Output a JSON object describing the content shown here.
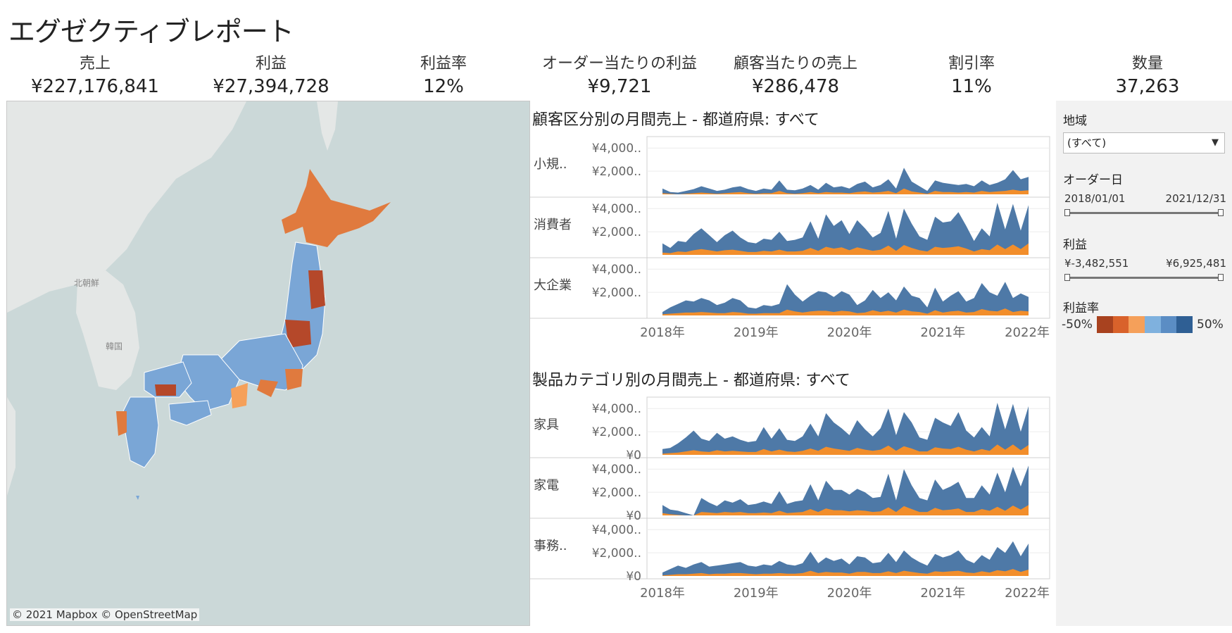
{
  "title": "エグゼクティブレポート",
  "kpis": [
    {
      "label": "売上",
      "value": "¥227,176,841"
    },
    {
      "label": "利益",
      "value": "¥27,394,728"
    },
    {
      "label": "利益率",
      "value": "12%"
    },
    {
      "label": "オーダー当たりの利益",
      "value": "¥9,721"
    },
    {
      "label": "顧客当たりの売上",
      "value": "¥286,478"
    },
    {
      "label": "割引率",
      "value": "11%"
    },
    {
      "label": "数量",
      "value": "37,263"
    }
  ],
  "map": {
    "credit": "© 2021 Mapbox © OpenStreetMap",
    "labels": {
      "north_korea": "北朝鮮",
      "south_korea": "韓国"
    }
  },
  "colors": {
    "sales_area": "#4e79a7",
    "profit_area": "#f28e2b",
    "map_high_loss": "#b5482a",
    "map_loss": "#e07a3e",
    "map_profit": "#7aa6d6",
    "legend": [
      "#a8421f",
      "#d9622b",
      "#f5a05a",
      "#7fb1de",
      "#5b8dc4",
      "#2f5f94"
    ]
  },
  "chart_customer": {
    "title": "顧客区分別の月間売上 - 都道府県: すべて",
    "rows": [
      {
        "label": "小規..",
        "ticks": [
          "¥4,000..",
          "¥2,000.."
        ]
      },
      {
        "label": "消費者",
        "ticks": [
          "¥4,000..",
          "¥2,000.."
        ]
      },
      {
        "label": "大企業",
        "ticks": [
          "¥4,000..",
          "¥2,000.."
        ]
      }
    ],
    "years": [
      "2018年",
      "2019年",
      "2020年",
      "2021年",
      "2022年"
    ]
  },
  "chart_product": {
    "title": "製品カテゴリ別の月間売上 - 都道府県: すべて",
    "rows": [
      {
        "label": "家具",
        "ticks": [
          "¥4,000..",
          "¥2,000..",
          "¥0"
        ]
      },
      {
        "label": "家電",
        "ticks": [
          "¥4,000..",
          "¥2,000..",
          "¥0"
        ]
      },
      {
        "label": "事務..",
        "ticks": [
          "¥4,000..",
          "¥2,000..",
          "¥0"
        ]
      }
    ],
    "years": [
      "2018年",
      "2019年",
      "2020年",
      "2021年",
      "2022年"
    ]
  },
  "chart_data": [
    {
      "type": "area",
      "title": "顧客区分別の月間売上 - 都道府県: すべて",
      "x_range": [
        "2018-01",
        "2021-12"
      ],
      "ylim": [
        0,
        4500000
      ],
      "series": [
        {
          "name": "小規..",
          "sales": [
            500000,
            200000,
            150000,
            300000,
            450000,
            700000,
            500000,
            300000,
            400000,
            600000,
            700000,
            450000,
            300000,
            500000,
            400000,
            1200000,
            400000,
            350000,
            500000,
            800000,
            400000,
            1000000,
            600000,
            700000,
            500000,
            900000,
            1100000,
            600000,
            800000,
            1300000,
            500000,
            2300000,
            1100000,
            700000,
            300000,
            1200000,
            1000000,
            900000,
            800000,
            900000,
            700000,
            1200000,
            800000,
            1000000,
            1300000,
            2100000,
            1300000,
            1500000
          ],
          "profit": [
            100000,
            50000,
            0,
            50000,
            100000,
            150000,
            100000,
            50000,
            100000,
            150000,
            200000,
            100000,
            50000,
            100000,
            100000,
            300000,
            100000,
            50000,
            100000,
            200000,
            100000,
            200000,
            150000,
            150000,
            100000,
            200000,
            250000,
            150000,
            200000,
            300000,
            100000,
            500000,
            250000,
            150000,
            50000,
            300000,
            200000,
            200000,
            150000,
            200000,
            150000,
            300000,
            200000,
            250000,
            300000,
            400000,
            300000,
            350000
          ]
        },
        {
          "name": "消費者",
          "sales": [
            1000000,
            600000,
            1200000,
            1100000,
            1800000,
            2300000,
            1700000,
            1100000,
            1700000,
            2100000,
            1500000,
            1100000,
            1000000,
            1400000,
            1300000,
            2000000,
            1200000,
            1300000,
            1500000,
            2900000,
            1400000,
            3500000,
            2500000,
            3000000,
            1800000,
            3000000,
            2300000,
            1500000,
            1900000,
            3800000,
            1400000,
            4000000,
            2700000,
            1600000,
            1300000,
            3300000,
            2800000,
            2900000,
            3700000,
            2500000,
            1200000,
            2300000,
            1600000,
            4500000,
            2200000,
            4400000,
            2100000,
            4300000
          ],
          "profit": [
            200000,
            150000,
            300000,
            250000,
            400000,
            500000,
            400000,
            300000,
            400000,
            450000,
            350000,
            250000,
            250000,
            350000,
            300000,
            450000,
            300000,
            300000,
            350000,
            600000,
            350000,
            700000,
            550000,
            650000,
            400000,
            650000,
            500000,
            350000,
            450000,
            800000,
            350000,
            850000,
            600000,
            400000,
            300000,
            700000,
            600000,
            650000,
            750000,
            550000,
            300000,
            500000,
            400000,
            900000,
            500000,
            900000,
            500000,
            1000000
          ]
        },
        {
          "name": "大企業",
          "sales": [
            300000,
            700000,
            1000000,
            1300000,
            1200000,
            1500000,
            1300000,
            900000,
            1100000,
            1500000,
            1300000,
            700000,
            600000,
            900000,
            800000,
            1000000,
            2700000,
            1800000,
            1200000,
            1700000,
            2100000,
            2000000,
            1600000,
            2100000,
            1800000,
            900000,
            1300000,
            2200000,
            1500000,
            2000000,
            1300000,
            2500000,
            1700000,
            1500000,
            700000,
            2400000,
            1200000,
            1700000,
            2100000,
            1200000,
            1500000,
            2800000,
            2000000,
            1700000,
            2900000,
            1500000,
            1900000,
            1600000
          ],
          "profit": [
            100000,
            150000,
            200000,
            250000,
            250000,
            300000,
            250000,
            200000,
            200000,
            300000,
            250000,
            150000,
            150000,
            200000,
            200000,
            200000,
            500000,
            350000,
            250000,
            350000,
            400000,
            400000,
            300000,
            400000,
            350000,
            200000,
            250000,
            450000,
            300000,
            400000,
            250000,
            500000,
            350000,
            300000,
            150000,
            450000,
            250000,
            350000,
            400000,
            250000,
            300000,
            550000,
            400000,
            350000,
            600000,
            300000,
            400000,
            350000
          ]
        }
      ]
    },
    {
      "type": "area",
      "title": "製品カテゴリ別の月間売上 - 都道府県: すべて",
      "x_range": [
        "2018-01",
        "2021-12"
      ],
      "ylim": [
        0,
        4500000
      ],
      "series": [
        {
          "name": "家具",
          "sales": [
            500000,
            600000,
            1000000,
            1500000,
            2100000,
            1400000,
            1200000,
            1900000,
            1400000,
            1600000,
            1300000,
            1100000,
            1200000,
            2400000,
            1400000,
            2300000,
            1300000,
            1200000,
            1600000,
            2700000,
            1600000,
            3600000,
            2800000,
            2300000,
            1700000,
            3000000,
            2200000,
            1600000,
            2300000,
            4000000,
            1700000,
            3700000,
            2800000,
            1500000,
            1300000,
            3200000,
            2800000,
            2500000,
            3700000,
            2100000,
            1500000,
            2400000,
            1600000,
            4500000,
            2200000,
            4400000,
            2000000,
            4200000
          ],
          "profit": [
            100000,
            150000,
            200000,
            300000,
            400000,
            300000,
            250000,
            400000,
            300000,
            350000,
            300000,
            250000,
            250000,
            500000,
            300000,
            450000,
            300000,
            250000,
            350000,
            550000,
            350000,
            700000,
            550000,
            450000,
            350000,
            600000,
            450000,
            350000,
            450000,
            800000,
            350000,
            750000,
            550000,
            300000,
            300000,
            650000,
            550000,
            500000,
            700000,
            450000,
            300000,
            500000,
            350000,
            900000,
            450000,
            900000,
            400000,
            850000
          ]
        },
        {
          "name": "家電",
          "sales": [
            900000,
            500000,
            400000,
            200000,
            0,
            1500000,
            1100000,
            800000,
            1300000,
            1100000,
            1400000,
            900000,
            1000000,
            1200000,
            1000000,
            2100000,
            1000000,
            1200000,
            1300000,
            2700000,
            1300000,
            3000000,
            2200000,
            2200000,
            1800000,
            2300000,
            2000000,
            1500000,
            1600000,
            3600000,
            1300000,
            4000000,
            2600000,
            1500000,
            1300000,
            3100000,
            2200000,
            2500000,
            2900000,
            1500000,
            1500000,
            2600000,
            1800000,
            3700000,
            2000000,
            4200000,
            2500000,
            4300000
          ],
          "profit": [
            200000,
            100000,
            50000,
            -100000,
            0,
            300000,
            250000,
            200000,
            300000,
            250000,
            300000,
            200000,
            200000,
            250000,
            200000,
            400000,
            200000,
            250000,
            300000,
            550000,
            300000,
            600000,
            450000,
            450000,
            350000,
            450000,
            400000,
            300000,
            350000,
            700000,
            300000,
            800000,
            550000,
            300000,
            300000,
            650000,
            450000,
            500000,
            600000,
            300000,
            300000,
            550000,
            400000,
            750000,
            400000,
            850000,
            500000,
            900000
          ]
        },
        {
          "name": "事務..",
          "sales": [
            300000,
            600000,
            900000,
            700000,
            1000000,
            1200000,
            800000,
            900000,
            1000000,
            1100000,
            1200000,
            900000,
            800000,
            1000000,
            900000,
            1300000,
            1000000,
            900000,
            1100000,
            2100000,
            1100000,
            1600000,
            1300000,
            1500000,
            1000000,
            1700000,
            1600000,
            1100000,
            1200000,
            2000000,
            1200000,
            2200000,
            1600000,
            1200000,
            900000,
            1900000,
            1600000,
            1800000,
            2200000,
            1400000,
            1100000,
            1800000,
            1400000,
            2500000,
            2000000,
            3000000,
            1700000,
            2800000
          ],
          "profit": [
            50000,
            100000,
            150000,
            150000,
            200000,
            250000,
            150000,
            200000,
            200000,
            250000,
            250000,
            200000,
            150000,
            200000,
            200000,
            250000,
            200000,
            200000,
            250000,
            450000,
            250000,
            350000,
            300000,
            300000,
            200000,
            350000,
            350000,
            250000,
            250000,
            400000,
            250000,
            450000,
            350000,
            250000,
            200000,
            400000,
            350000,
            400000,
            450000,
            300000,
            250000,
            400000,
            300000,
            500000,
            400000,
            600000,
            350000,
            550000
          ]
        }
      ]
    }
  ],
  "filters": {
    "region": {
      "label": "地域",
      "value": "(すべて)"
    },
    "order_date": {
      "label": "オーダー日",
      "min": "2018/01/01",
      "max": "2021/12/31"
    },
    "profit": {
      "label": "利益",
      "min": "¥-3,482,551",
      "max": "¥6,925,481"
    },
    "margin": {
      "label": "利益率",
      "min": "-50%",
      "max": "50%"
    }
  }
}
